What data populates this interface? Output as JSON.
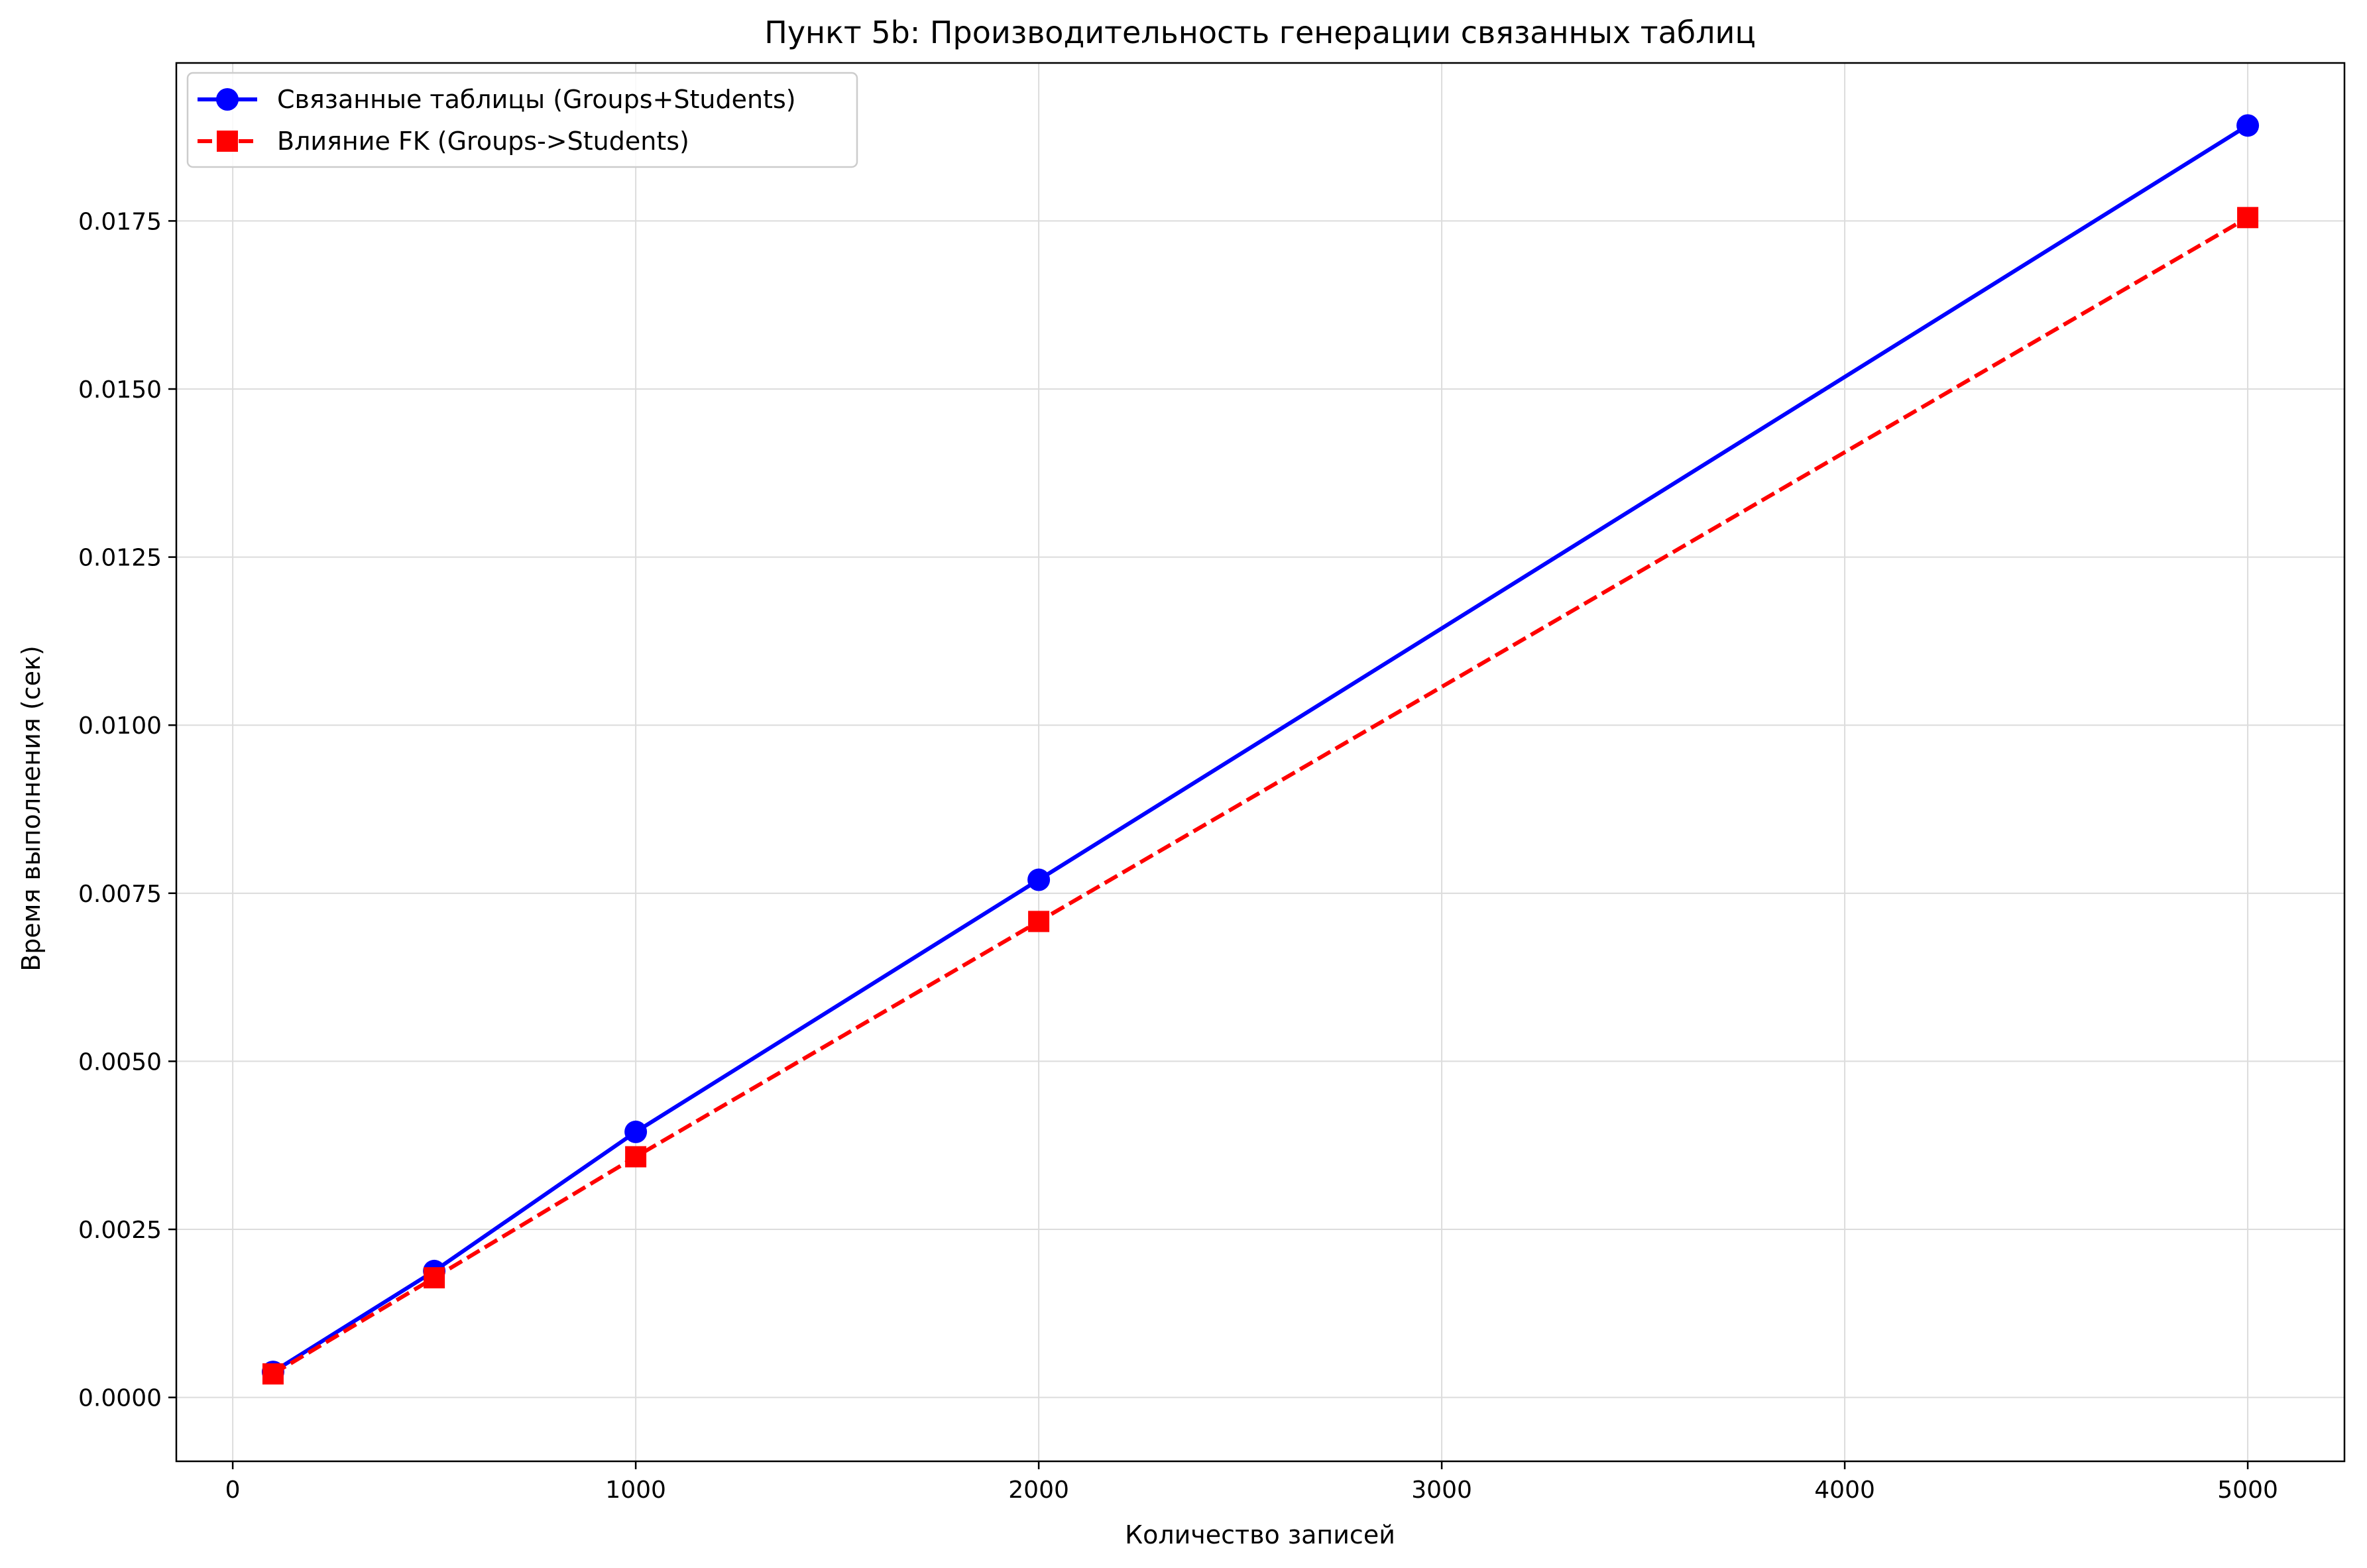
{
  "chart_data": {
    "type": "line",
    "title": "Пункт 5b: Производительность генерации связанных таблиц",
    "xlabel": "Количество записей",
    "ylabel": "Время выполнения (сек)",
    "xlim": [
      -140,
      5240
    ],
    "ylim": [
      -0.00095,
      0.01985
    ],
    "x_ticks": [
      0,
      1000,
      2000,
      3000,
      4000,
      5000
    ],
    "x_tick_labels": [
      "0",
      "1000",
      "2000",
      "3000",
      "4000",
      "5000"
    ],
    "y_ticks": [
      0,
      0.0025,
      0.005,
      0.0075,
      0.01,
      0.0125,
      0.015,
      0.0175
    ],
    "y_tick_labels": [
      "0.0000",
      "0.0025",
      "0.0050",
      "0.0075",
      "0.0100",
      "0.0125",
      "0.0150",
      "0.0175"
    ],
    "grid": true,
    "legend_position": "top-left",
    "x": [
      100,
      500,
      1000,
      2000,
      5000
    ],
    "series": [
      {
        "name": "Связанные таблицы (Groups+Students)",
        "color": "#0000ff",
        "line_style": "solid",
        "marker": "circle",
        "values": [
          0.00038,
          0.00188,
          0.00395,
          0.0077,
          0.01892
        ]
      },
      {
        "name": "Влияние FK (Groups->Students)",
        "color": "#ff0000",
        "line_style": "dashed",
        "marker": "square",
        "values": [
          0.00035,
          0.00178,
          0.00358,
          0.00708,
          0.01755
        ]
      }
    ]
  }
}
